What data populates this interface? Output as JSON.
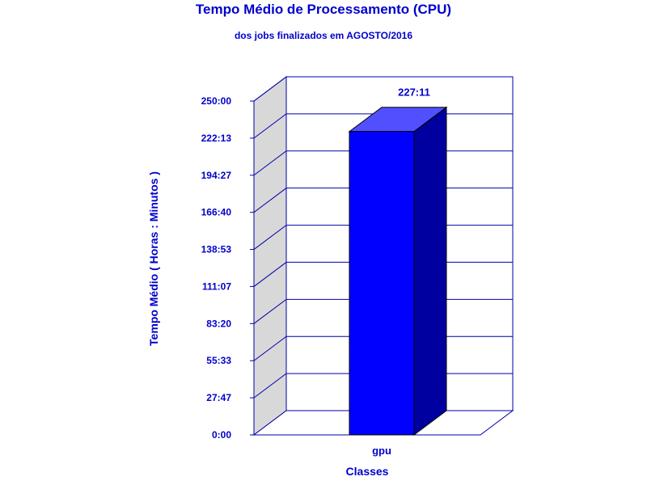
{
  "chart_data": {
    "type": "bar",
    "title": "Tempo Médio de Processamento (CPU)",
    "subtitle": "dos jobs finalizados em AGOSTO/2016",
    "xlabel": "Classes",
    "ylabel": "Tempo Médio ( Horas : Minutos )",
    "categories": [
      "gpu"
    ],
    "values": [
      227.183
    ],
    "data_labels": [
      "227:11"
    ],
    "y_ticks": [
      {
        "value": 0,
        "label": "0:00"
      },
      {
        "value": 27.783,
        "label": "27:47"
      },
      {
        "value": 55.55,
        "label": "55:33"
      },
      {
        "value": 83.333,
        "label": "83:20"
      },
      {
        "value": 111.117,
        "label": "111:07"
      },
      {
        "value": 138.883,
        "label": "138:53"
      },
      {
        "value": 166.667,
        "label": "166:40"
      },
      {
        "value": 194.45,
        "label": "194:27"
      },
      {
        "value": 222.217,
        "label": "222:13"
      },
      {
        "value": 250,
        "label": "250:00"
      }
    ],
    "ylim": [
      0,
      250
    ],
    "grid": true,
    "colors": {
      "text": "#0000cc",
      "frame": "#0000aa",
      "bar_front": "#0000ff",
      "bar_top": "#5050ff",
      "bar_side": "#0000a0",
      "wall": "#d8d8d8"
    }
  }
}
